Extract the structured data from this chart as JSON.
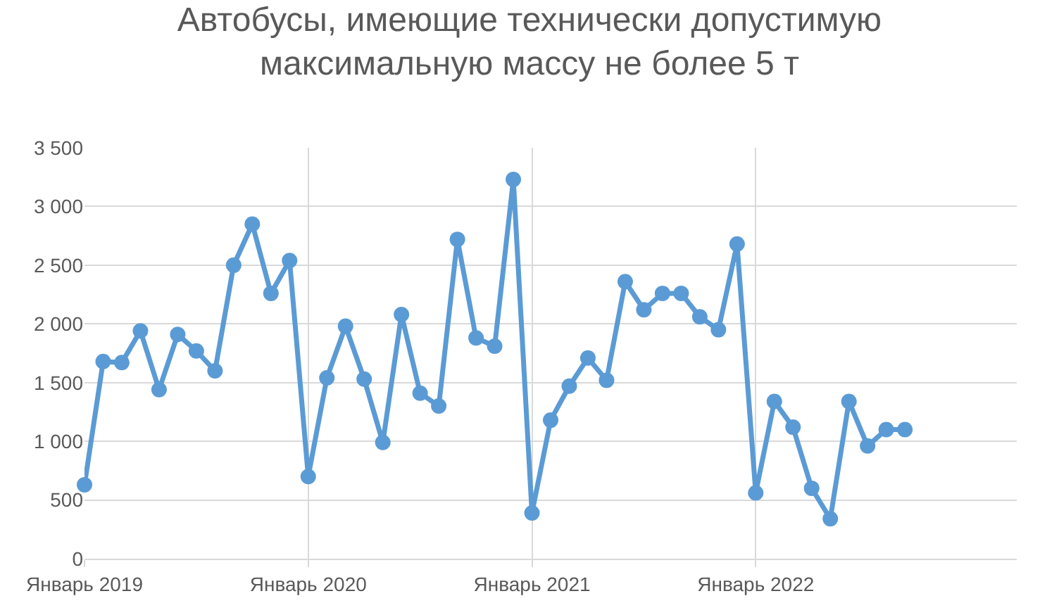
{
  "chart_data": {
    "type": "line",
    "title": "Автобусы, имеющие технически допустимую максимальную массу не более 5 т",
    "categories": [
      "Январь 2019",
      null,
      null,
      null,
      null,
      null,
      null,
      null,
      null,
      null,
      null,
      null,
      "Январь 2020",
      null,
      null,
      null,
      null,
      null,
      null,
      null,
      null,
      null,
      null,
      null,
      "Январь 2021",
      null,
      null,
      null,
      null,
      null,
      null,
      null,
      null,
      null,
      null,
      null,
      "Январь 2022",
      null,
      null,
      null,
      null,
      null,
      null,
      null,
      null
    ],
    "series": [
      {
        "color": "#5b9bd5",
        "values": [
          630,
          1680,
          1670,
          1940,
          1440,
          1910,
          1770,
          1600,
          2500,
          2850,
          2260,
          2540,
          700,
          1540,
          1980,
          1530,
          990,
          2080,
          1410,
          1300,
          2720,
          1880,
          1810,
          3230,
          390,
          1180,
          1470,
          1710,
          1520,
          2360,
          2120,
          2260,
          2260,
          2060,
          1950,
          2680,
          560,
          1340,
          1120,
          600,
          340,
          1340,
          960,
          1100,
          1100
        ]
      }
    ],
    "ylim": [
      0,
      3500
    ],
    "yticks": [
      0,
      500,
      {
        "value": 1000,
        "label": "1 000"
      },
      {
        "value": 1500,
        "label": "1 500"
      },
      {
        "value": 2000,
        "label": "2 000"
      },
      {
        "value": 2500,
        "label": "2 500"
      },
      {
        "value": 3000,
        "label": "3 000"
      },
      {
        "value": 3500,
        "label": "3 500"
      }
    ],
    "grid": true,
    "marker": "circle",
    "line_style": "solid"
  }
}
